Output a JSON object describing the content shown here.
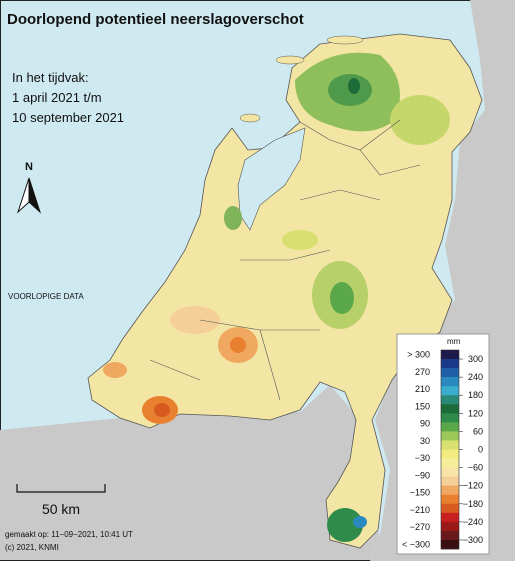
{
  "header": {
    "title": "Doorlopend potentieel neerslagoverschot",
    "period": [
      "In het tijdvak:",
      "1 april 2021 t/m",
      "10 september 2021"
    ]
  },
  "north": "N",
  "status": "VOORLOPIGE DATA",
  "scale": "50 km",
  "footer": [
    "gemaakt op: 11−09−2021, 10:41 UT",
    "(c) 2021, KNMI"
  ],
  "legend": {
    "unit": "mm",
    "left_labels": [
      "> 300",
      "270",
      "210",
      "150",
      "90",
      "30",
      "−30",
      "−90",
      "−150",
      "−210",
      "−270",
      "< −300"
    ],
    "right_labels": [
      "300",
      "240",
      "180",
      "120",
      "60",
      "0",
      "−60",
      "−120",
      "−180",
      "−240",
      "−300"
    ],
    "colors": [
      "#1c1a4a",
      "#1a3a8a",
      "#1f5fa8",
      "#2a8ac0",
      "#3aaccc",
      "#2a8a7a",
      "#1e6b3a",
      "#2e8b4a",
      "#5aa84a",
      "#9cc85a",
      "#d8e070",
      "#f3ec80",
      "#f8ee9a",
      "#f8e3a8",
      "#f5cf98",
      "#f0a860",
      "#e88030",
      "#d85a20",
      "#c82020",
      "#9a1a1a",
      "#6a1a1a",
      "#3a1010"
    ]
  }
}
